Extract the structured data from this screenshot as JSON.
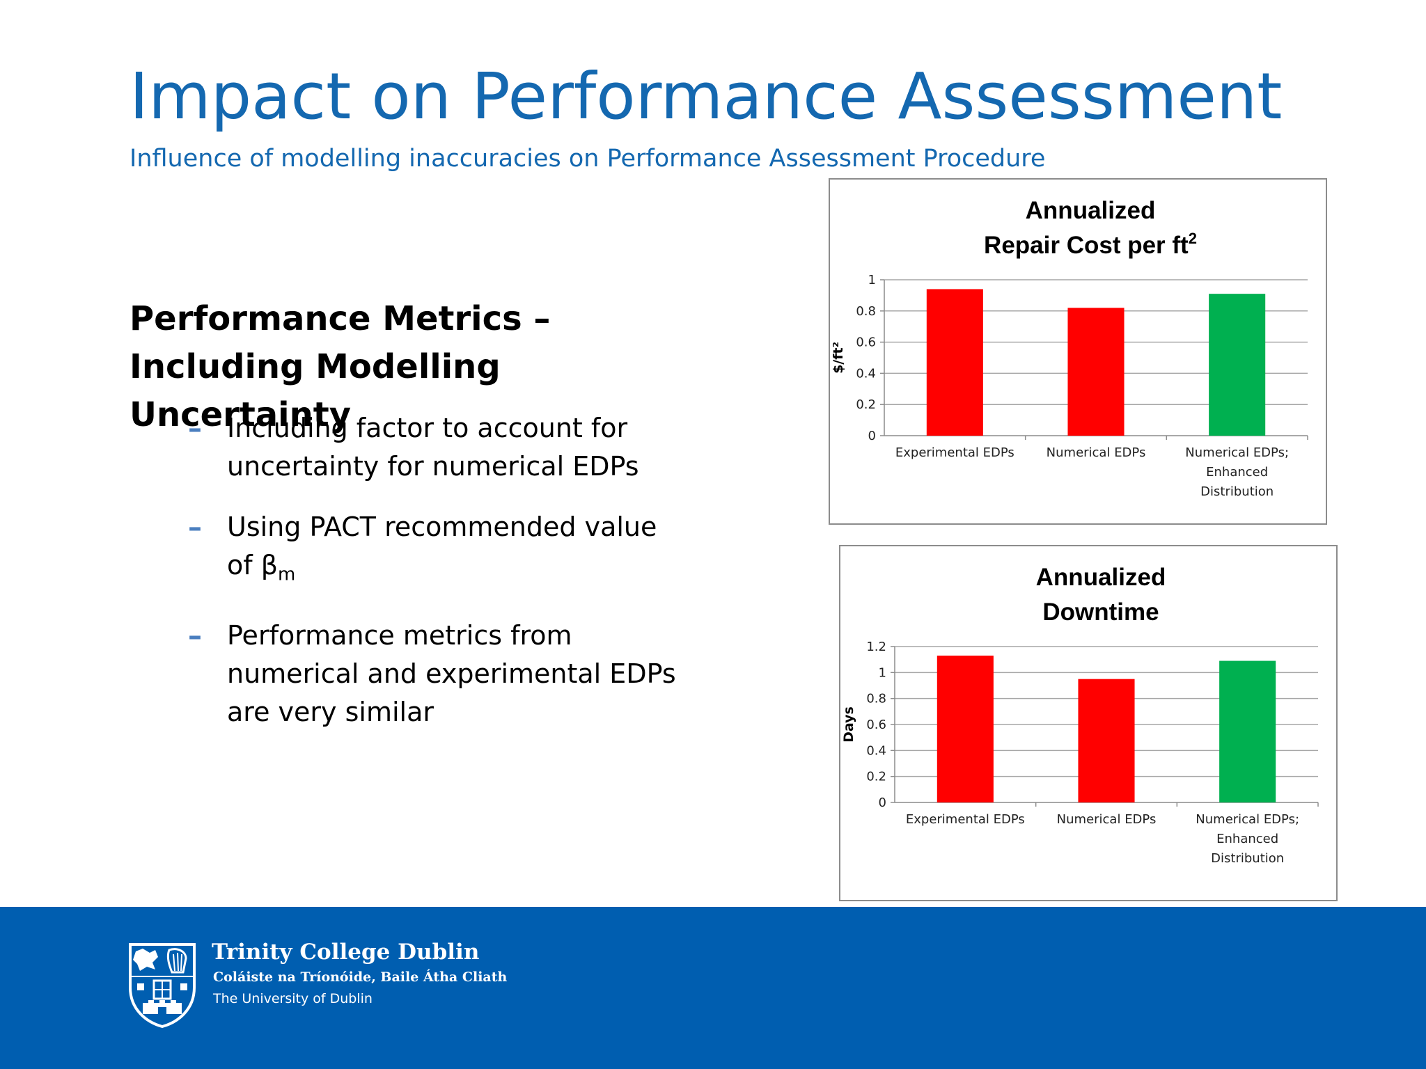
{
  "slide": {
    "title": "Impact on Performance Assessment",
    "subtitle": "Influence of modelling inaccuracies on Performance Assessment Procedure",
    "section_heading": "Performance Metrics – Including Modelling Uncertainty",
    "bullets": [
      {
        "text": "Including factor to account for uncertainty for numerical EDPs"
      },
      {
        "text": "Using PACT recommended value of β",
        "subscript": "m"
      },
      {
        "text": "Performance metrics from numerical and experimental EDPs are very similar"
      }
    ]
  },
  "chart_data": [
    {
      "type": "bar",
      "title_lines": [
        "Annualized",
        "Repair Cost per ft"
      ],
      "title_superscript": "2",
      "ylabel": "$/ft²",
      "xlabel": "",
      "categories": [
        "Experimental EDPs",
        "Numerical EDPs",
        "Numerical EDPs; Enhanced Distribution"
      ],
      "category_lines": [
        [
          "Experimental EDPs"
        ],
        [
          "Numerical EDPs"
        ],
        [
          "Numerical EDPs;",
          "Enhanced",
          "Distribution"
        ]
      ],
      "values": [
        0.94,
        0.82,
        0.91
      ],
      "bar_colors": [
        "#ff0000",
        "#ff0000",
        "#00b050"
      ],
      "ylim": [
        0,
        1
      ],
      "yticks": [
        0,
        0.2,
        0.4,
        0.6,
        0.8,
        1
      ],
      "ytick_labels": [
        "0",
        "0.2",
        "0.4",
        "0.6",
        "0.8",
        "1"
      ],
      "grid": true,
      "legend": "none"
    },
    {
      "type": "bar",
      "title_lines": [
        "Annualized",
        "Downtime"
      ],
      "title_superscript": "",
      "ylabel": "Days",
      "xlabel": "",
      "categories": [
        "Experimental EDPs",
        "Numerical EDPs",
        "Numerical EDPs; Enhanced Distribution"
      ],
      "category_lines": [
        [
          "Experimental EDPs"
        ],
        [
          "Numerical EDPs"
        ],
        [
          "Numerical EDPs;",
          "Enhanced",
          "Distribution"
        ]
      ],
      "values": [
        1.13,
        0.95,
        1.09
      ],
      "bar_colors": [
        "#ff0000",
        "#ff0000",
        "#00b050"
      ],
      "ylim": [
        0,
        1.2
      ],
      "yticks": [
        0,
        0.2,
        0.4,
        0.6,
        0.8,
        1,
        1.2
      ],
      "ytick_labels": [
        "0",
        "0.2",
        "0.4",
        "0.6",
        "0.8",
        "1",
        "1.2"
      ],
      "grid": true,
      "legend": "none"
    }
  ],
  "footer": {
    "institution": "Trinity College Dublin",
    "institution_irish": "Coláiste na Tríonóide, Baile Átha Cliath",
    "university": "The University of Dublin",
    "logo_icon": "college-crest-icon",
    "band_color": "#005eb0",
    "accent_color": "#1468b0"
  }
}
